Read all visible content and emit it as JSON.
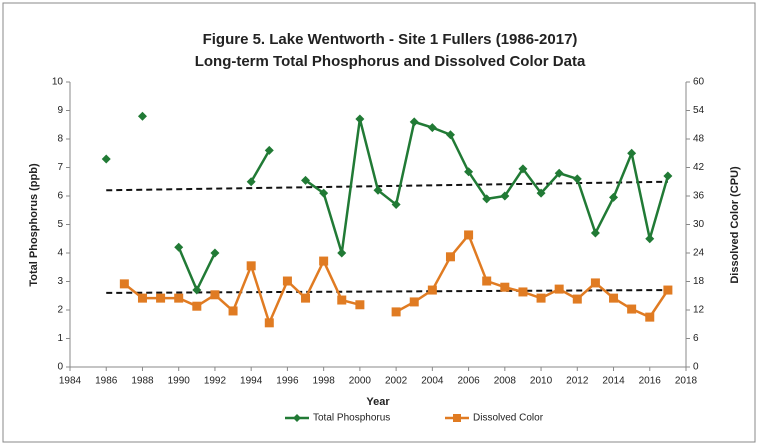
{
  "chart_data": {
    "type": "line",
    "title": "Figure 5. Lake Wentworth - Site 1 Fullers (1986-2017)",
    "subtitle": "Long-term Total Phosphorus and Dissolved Color Data",
    "x_label": "Year",
    "y_label": "Total Phosphorus (ppb)",
    "y2_label": "Dissolved Color (CPU)",
    "x": [
      1986,
      1987,
      1988,
      1989,
      1990,
      1991,
      1992,
      1993,
      1994,
      1995,
      1996,
      1997,
      1998,
      1999,
      2000,
      2001,
      2002,
      2003,
      2004,
      2005,
      2006,
      2007,
      2008,
      2009,
      2010,
      2011,
      2012,
      2013,
      2014,
      2015,
      2016,
      2017
    ],
    "series": [
      {
        "name": "Total Phosphorus",
        "color": "#217a35",
        "marker": "diamond",
        "axis": "y",
        "values": [
          7.3,
          null,
          8.8,
          null,
          4.2,
          2.7,
          4.0,
          null,
          6.5,
          7.6,
          null,
          6.55,
          6.1,
          4.0,
          8.7,
          6.2,
          5.7,
          8.6,
          8.4,
          8.15,
          6.85,
          5.9,
          6.0,
          6.95,
          6.1,
          6.8,
          6.6,
          4.7,
          5.95,
          7.5,
          4.5,
          6.7
        ]
      },
      {
        "name": "Dissolved Color",
        "color": "#e07b22",
        "marker": "square",
        "axis": "y2",
        "values": [
          null,
          17.5,
          14.5,
          14.5,
          14.5,
          12.8,
          15.2,
          11.8,
          21.3,
          9.3,
          18.1,
          14.5,
          22.3,
          14.1,
          13.1,
          null,
          11.6,
          13.7,
          16.2,
          23.2,
          27.8,
          18.1,
          16.8,
          15.8,
          14.5,
          16.4,
          14.3,
          17.7,
          14.5,
          12.2,
          10.5,
          16.2
        ]
      }
    ],
    "trend_lines": [
      {
        "axis": "y",
        "x": [
          1986,
          2017
        ],
        "values": [
          6.2,
          6.5
        ]
      },
      {
        "axis": "y2",
        "x": [
          1986,
          2017
        ],
        "values": [
          15.6,
          16.2
        ]
      }
    ],
    "xlim": [
      1984,
      2018
    ],
    "xticks": [
      1984,
      1986,
      1988,
      1990,
      1992,
      1994,
      1996,
      1998,
      2000,
      2002,
      2004,
      2006,
      2008,
      2010,
      2012,
      2014,
      2016,
      2018
    ],
    "ylim": [
      0,
      10
    ],
    "yticks": [
      0,
      1,
      2,
      3,
      4,
      5,
      6,
      7,
      8,
      9,
      10
    ],
    "y2lim": [
      0,
      60
    ],
    "y2ticks": [
      0,
      6,
      12,
      18,
      24,
      30,
      36,
      42,
      48,
      54,
      60
    ],
    "legend": "bottom"
  }
}
